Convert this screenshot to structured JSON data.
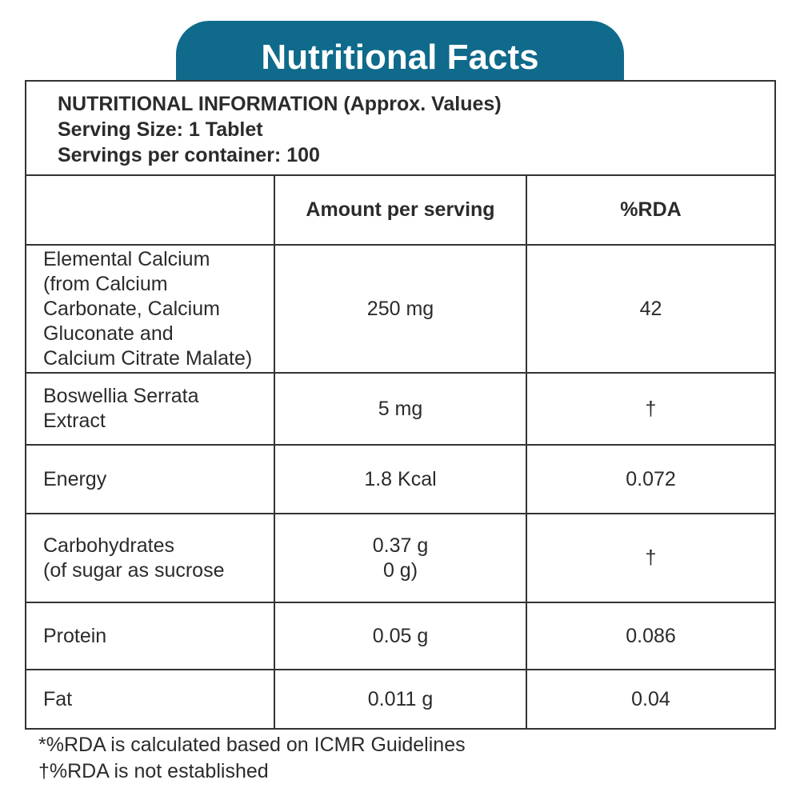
{
  "title": "Nutritional Facts",
  "info": {
    "line1": "NUTRITIONAL INFORMATION (Approx. Values)",
    "line2": "Serving Size: 1 Tablet",
    "line3": "Servings per container: 100"
  },
  "columns": [
    "",
    "Amount per serving",
    "%RDA"
  ],
  "rows": [
    {
      "name": "Elemental Calcium\n(from Calcium\nCarbonate, Calcium\nGluconate and\nCalcium Citrate Malate)",
      "amount": "250 mg",
      "rda": "42"
    },
    {
      "name": "Boswellia Serrata\nExtract",
      "amount": "5 mg",
      "rda": "†"
    },
    {
      "name": "Energy",
      "amount": "1.8 Kcal",
      "rda": "0.072"
    },
    {
      "name": "Carbohydrates\n(of sugar as sucrose",
      "amount": "0.37 g\n0 g)",
      "rda": "†"
    },
    {
      "name": "Protein",
      "amount": "0.05 g",
      "rda": "0.086"
    },
    {
      "name": "Fat",
      "amount": "0.011 g",
      "rda": "0.04"
    }
  ],
  "footnotes": [
    "*%RDA is calculated based on ICMR Guidelines",
    "†%RDA is not established"
  ],
  "colors": {
    "banner": "#0f6a8b",
    "text": "#2b2b2b"
  }
}
